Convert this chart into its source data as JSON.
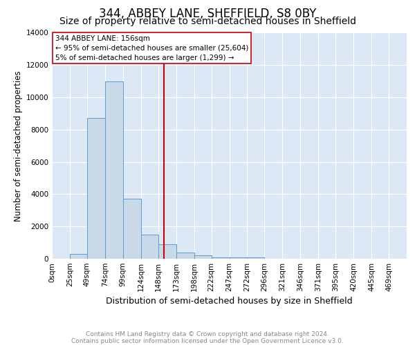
{
  "title1": "344, ABBEY LANE, SHEFFIELD, S8 0BY",
  "title2": "Size of property relative to semi-detached houses in Sheffield",
  "xlabel": "Distribution of semi-detached houses by size in Sheffield",
  "ylabel": "Number of semi-detached properties",
  "footer": "Contains HM Land Registry data © Crown copyright and database right 2024.\nContains public sector information licensed under the Open Government Licence v3.0.",
  "bin_edges": [
    0,
    25,
    49,
    74,
    99,
    124,
    148,
    173,
    198,
    222,
    247,
    272,
    296,
    321,
    346,
    371,
    395,
    420,
    445,
    469,
    494
  ],
  "bar_heights": [
    0,
    300,
    8700,
    11000,
    3700,
    1500,
    900,
    400,
    200,
    100,
    100,
    100,
    0,
    0,
    0,
    0,
    0,
    0,
    0,
    0
  ],
  "bar_color": "#c9d9e8",
  "bar_edgecolor": "#5b9bd5",
  "property_size": 156,
  "vline_color": "#cc0000",
  "annotation_title": "344 ABBEY LANE: 156sqm",
  "annotation_line1": "← 95% of semi-detached houses are smaller (25,604)",
  "annotation_line2": "5% of semi-detached houses are larger (1,299) →",
  "annotation_box_color": "#ffffff",
  "annotation_box_edgecolor": "#cc0000",
  "ylim": [
    0,
    14000
  ],
  "yticks": [
    0,
    2000,
    4000,
    6000,
    8000,
    10000,
    12000,
    14000
  ],
  "bg_color": "#dce8f5",
  "title1_fontsize": 12,
  "title2_fontsize": 10,
  "xlabel_fontsize": 9,
  "ylabel_fontsize": 8.5,
  "footer_fontsize": 6.5,
  "tick_fontsize": 7.5
}
